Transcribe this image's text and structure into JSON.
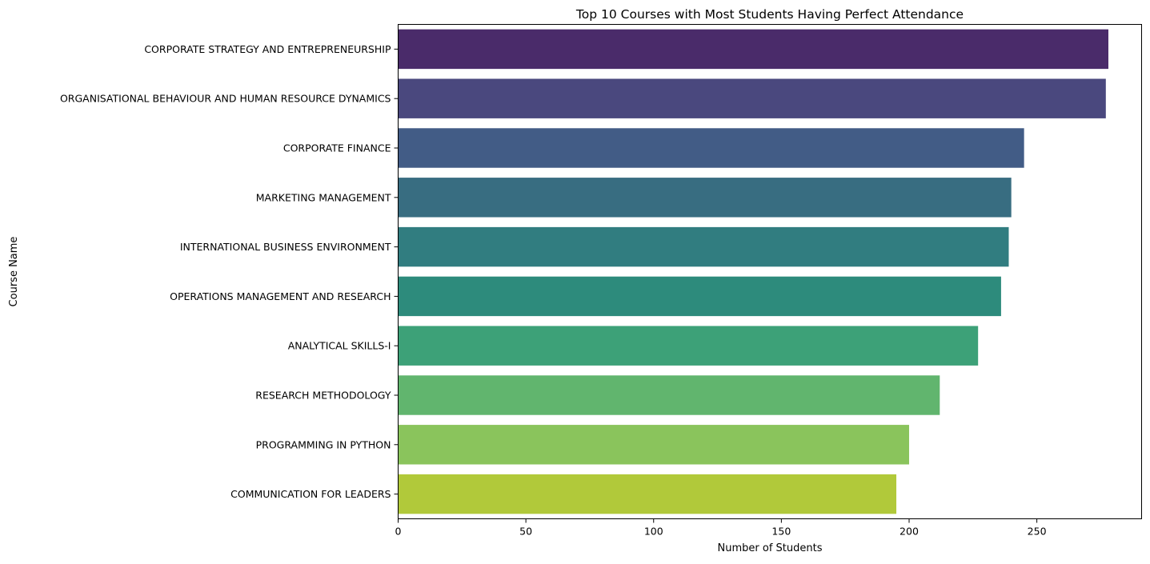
{
  "chart_data": {
    "type": "bar",
    "orientation": "horizontal",
    "title": "Top 10 Courses with Most Students Having Perfect Attendance",
    "xlabel": "Number of Students",
    "ylabel": "Course Name",
    "categories": [
      "CORPORATE STRATEGY AND ENTREPRENEURSHIP",
      "ORGANISATIONAL BEHAVIOUR AND HUMAN RESOURCE DYNAMICS",
      "CORPORATE FINANCE",
      "MARKETING MANAGEMENT",
      "INTERNATIONAL BUSINESS ENVIRONMENT",
      "OPERATIONS MANAGEMENT AND RESEARCH",
      "ANALYTICAL SKILLS-I",
      "RESEARCH METHODOLOGY",
      "PROGRAMMING IN PYTHON",
      "COMMUNICATION FOR LEADERS"
    ],
    "values": [
      278,
      277,
      245,
      240,
      239,
      236,
      227,
      212,
      200,
      195
    ],
    "colors": [
      "#4a2b6a",
      "#4a487e",
      "#425c86",
      "#386d81",
      "#317d80",
      "#2d8b7c",
      "#3da178",
      "#61b56e",
      "#8ac45c",
      "#b1c93a"
    ],
    "xlim": [
      0,
      291
    ],
    "xticks": [
      0,
      50,
      100,
      150,
      200,
      250
    ],
    "grid": false,
    "legend": "none"
  }
}
